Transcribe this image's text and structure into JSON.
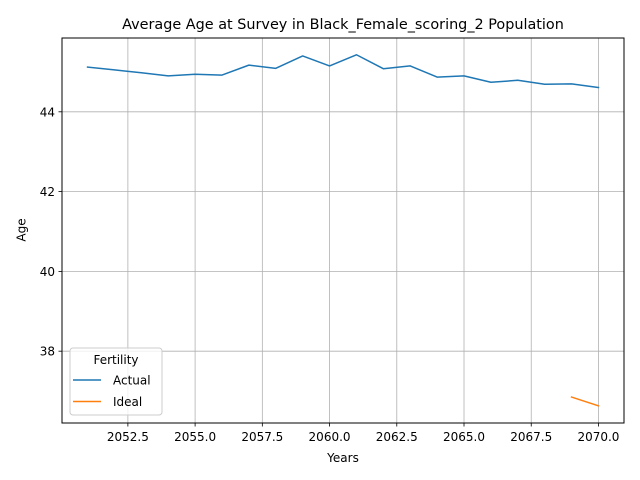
{
  "chart_data": {
    "type": "line",
    "title": "Average Age at Survey in Black_Female_scoring_2 Population",
    "xlabel": "Years",
    "ylabel": "Age",
    "xlim": [
      2050.05,
      2070.95
    ],
    "ylim": [
      36.2,
      45.85
    ],
    "x_ticks": [
      2052.5,
      2055.0,
      2057.5,
      2060.0,
      2062.5,
      2065.0,
      2067.5,
      2070.0
    ],
    "x_tick_labels": [
      "2052.5",
      "2055.0",
      "2057.5",
      "2060.0",
      "2062.5",
      "2065.0",
      "2067.5",
      "2070.0"
    ],
    "y_ticks": [
      38,
      40,
      42,
      44
    ],
    "y_tick_labels": [
      "38",
      "40",
      "42",
      "44"
    ],
    "grid": true,
    "legend": {
      "title": "Fertility",
      "placement": "lower-left"
    },
    "series": [
      {
        "name": "Actual",
        "color": "#1f77b4",
        "x": [
          2051,
          2052,
          2053,
          2054,
          2055,
          2056,
          2057,
          2058,
          2059,
          2060,
          2061,
          2062,
          2063,
          2064,
          2065,
          2066,
          2067,
          2068,
          2069,
          2070
        ],
        "values": [
          45.12,
          45.05,
          44.98,
          44.9,
          44.94,
          44.92,
          45.17,
          45.09,
          45.4,
          45.15,
          45.43,
          45.08,
          45.15,
          44.87,
          44.9,
          44.74,
          44.79,
          44.69,
          44.7,
          44.61
        ]
      },
      {
        "name": "Ideal",
        "color": "#ff7f0e",
        "x": [
          2069,
          2070
        ],
        "values": [
          36.85,
          36.63
        ]
      }
    ]
  }
}
